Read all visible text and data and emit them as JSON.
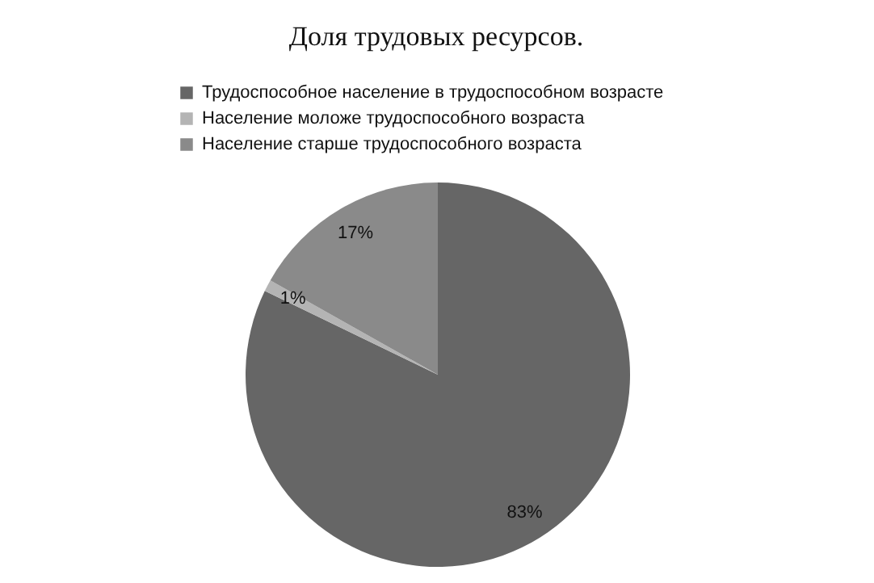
{
  "chart_data": {
    "type": "pie",
    "title": "Доля трудовых  ресурсов.",
    "categories": [
      "Трудоспособное население в трудоспособном возрасте",
      "Население  моложе трудоспособного возраста",
      "Население старше трудоспособного возраста"
    ],
    "values": [
      83,
      1,
      17
    ],
    "colors": [
      "#666666",
      "#b4b4b4",
      "#8a8a8a"
    ],
    "value_labels": [
      "83%",
      "1%",
      "17%"
    ],
    "legend": "top"
  }
}
